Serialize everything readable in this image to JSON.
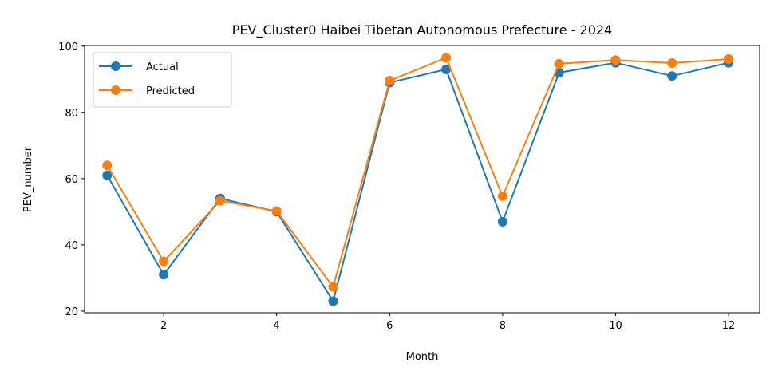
{
  "chart_data": {
    "type": "line",
    "title": "PEV_Cluster0 Haibei Tibetan Autonomous Prefecture - 2024",
    "xlabel": "Month",
    "ylabel": "PEV_number",
    "x": [
      1,
      2,
      3,
      4,
      5,
      6,
      7,
      8,
      9,
      10,
      11,
      12
    ],
    "xlim": [
      0.6,
      12.55
    ],
    "ylim": [
      19.5,
      100.2
    ],
    "xticks": [
      2,
      4,
      6,
      8,
      10,
      12
    ],
    "yticks": [
      20,
      40,
      60,
      80,
      100
    ],
    "grid": false,
    "legend_position": "top-left",
    "series": [
      {
        "name": "Actual",
        "color": "#1f77b4",
        "marker": "circle",
        "values": [
          61,
          31,
          54,
          50,
          23,
          89,
          93,
          47,
          92,
          95,
          91,
          95
        ]
      },
      {
        "name": "Predicted",
        "color": "#ff7f0e",
        "marker": "circle",
        "values": [
          64,
          35,
          53.3,
          50.2,
          27.3,
          89.6,
          96.5,
          54.7,
          94.7,
          95.8,
          94.9,
          96.1
        ]
      }
    ]
  }
}
